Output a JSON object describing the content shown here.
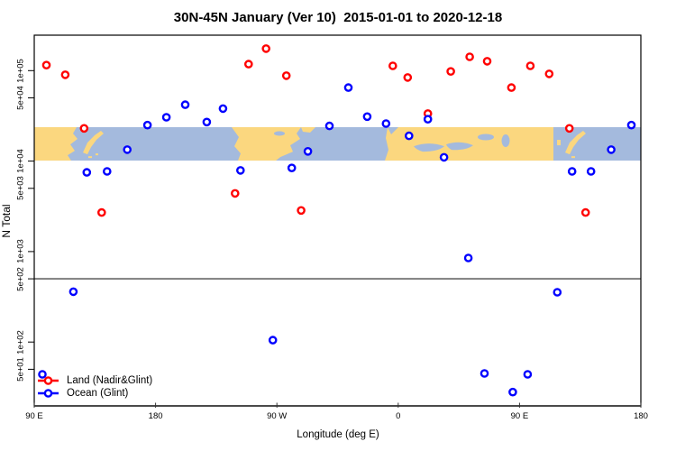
{
  "colors": {
    "land_marker": "#ff0000",
    "ocean_marker": "#0000ff",
    "marker_fill": "#ffffff",
    "map_land": "#fbd77f",
    "map_ocean": "#a4badd",
    "reference_line": "#4a4a4a",
    "box": "#000000"
  },
  "legend": {
    "items": [
      {
        "label": "Land (Nadir&Glint)",
        "color": "#ff0000"
      },
      {
        "label": "Ocean (Glint)",
        "color": "#0000ff"
      }
    ]
  },
  "chart_data": {
    "type": "scatter",
    "title": "30N-45N January (Ver 10)  2015-01-01 to 2020-12-18",
    "xlabel": "Longitude (deg E)",
    "ylabel": "N Total",
    "grid": false,
    "legend_position": "bottom-left",
    "x_axis": {
      "lim": [
        90,
        540
      ],
      "note": "longitude in deg E, wrapping eastward past 180 (labels repeat mod 360)",
      "ticks": [
        {
          "pos": 90,
          "label": "90 E"
        },
        {
          "pos": 180,
          "label": "180"
        },
        {
          "pos": 270,
          "label": "90 W"
        },
        {
          "pos": 360,
          "label": "0"
        },
        {
          "pos": 450,
          "label": "90 E"
        },
        {
          "pos": 540,
          "label": "180"
        }
      ]
    },
    "y_axis": {
      "scale": "log",
      "lim": [
        20,
        245000
      ],
      "ticks": [
        {
          "value": 100000,
          "label": "1e+05"
        },
        {
          "value": 50000,
          "label": "5e+04"
        },
        {
          "value": 10000,
          "label": "1e+04"
        },
        {
          "value": 5000,
          "label": "5e+03"
        },
        {
          "value": 1000,
          "label": "1e+03"
        },
        {
          "value": 500,
          "label": "5e+02"
        },
        {
          "value": 100,
          "label": "1e+02"
        },
        {
          "value": 50,
          "label": "5e+01"
        }
      ]
    },
    "reference_line_y": 500,
    "map_band_y_range": [
      10100,
      23700
    ],
    "series": [
      {
        "name": "Land (Nadir&Glint)",
        "color": "#ff0000",
        "points": [
          {
            "lon": 99,
            "n": 115000
          },
          {
            "lon": 113,
            "n": 90000
          },
          {
            "lon": 127,
            "n": 23000
          },
          {
            "lon": 140,
            "n": 2700
          },
          {
            "lon": 239,
            "n": 4400
          },
          {
            "lon": 249,
            "n": 118000
          },
          {
            "lon": 262,
            "n": 175000
          },
          {
            "lon": 277,
            "n": 88000
          },
          {
            "lon": 288,
            "n": 2850
          },
          {
            "lon": 356,
            "n": 113000
          },
          {
            "lon": 367,
            "n": 84000
          },
          {
            "lon": 382,
            "n": 33500
          },
          {
            "lon": 399,
            "n": 98000
          },
          {
            "lon": 413,
            "n": 142000
          },
          {
            "lon": 426,
            "n": 127000
          },
          {
            "lon": 444,
            "n": 65000
          },
          {
            "lon": 458,
            "n": 113000
          },
          {
            "lon": 472,
            "n": 92000
          },
          {
            "lon": 487,
            "n": 23000
          },
          {
            "lon": 499,
            "n": 2700
          }
        ]
      },
      {
        "name": "Ocean (Glint)",
        "color": "#0000ff",
        "points": [
          {
            "lon": 96,
            "n": 44
          },
          {
            "lon": 119,
            "n": 360
          },
          {
            "lon": 129,
            "n": 7500
          },
          {
            "lon": 144,
            "n": 7700
          },
          {
            "lon": 159,
            "n": 13400
          },
          {
            "lon": 174,
            "n": 25000
          },
          {
            "lon": 188,
            "n": 30500
          },
          {
            "lon": 202,
            "n": 42000
          },
          {
            "lon": 218,
            "n": 27000
          },
          {
            "lon": 230,
            "n": 38000
          },
          {
            "lon": 243,
            "n": 7900
          },
          {
            "lon": 267,
            "n": 105
          },
          {
            "lon": 281,
            "n": 8400
          },
          {
            "lon": 293,
            "n": 12800
          },
          {
            "lon": 309,
            "n": 24500
          },
          {
            "lon": 323,
            "n": 65000
          },
          {
            "lon": 337,
            "n": 31000
          },
          {
            "lon": 351,
            "n": 26000
          },
          {
            "lon": 368,
            "n": 19000
          },
          {
            "lon": 382,
            "n": 29000
          },
          {
            "lon": 394,
            "n": 11000
          },
          {
            "lon": 412,
            "n": 850
          },
          {
            "lon": 424,
            "n": 45
          },
          {
            "lon": 445,
            "n": 28
          },
          {
            "lon": 456,
            "n": 44
          },
          {
            "lon": 478,
            "n": 355
          },
          {
            "lon": 489,
            "n": 7700
          },
          {
            "lon": 503,
            "n": 7700
          },
          {
            "lon": 518,
            "n": 13400
          },
          {
            "lon": 533,
            "n": 25000
          }
        ]
      }
    ]
  }
}
